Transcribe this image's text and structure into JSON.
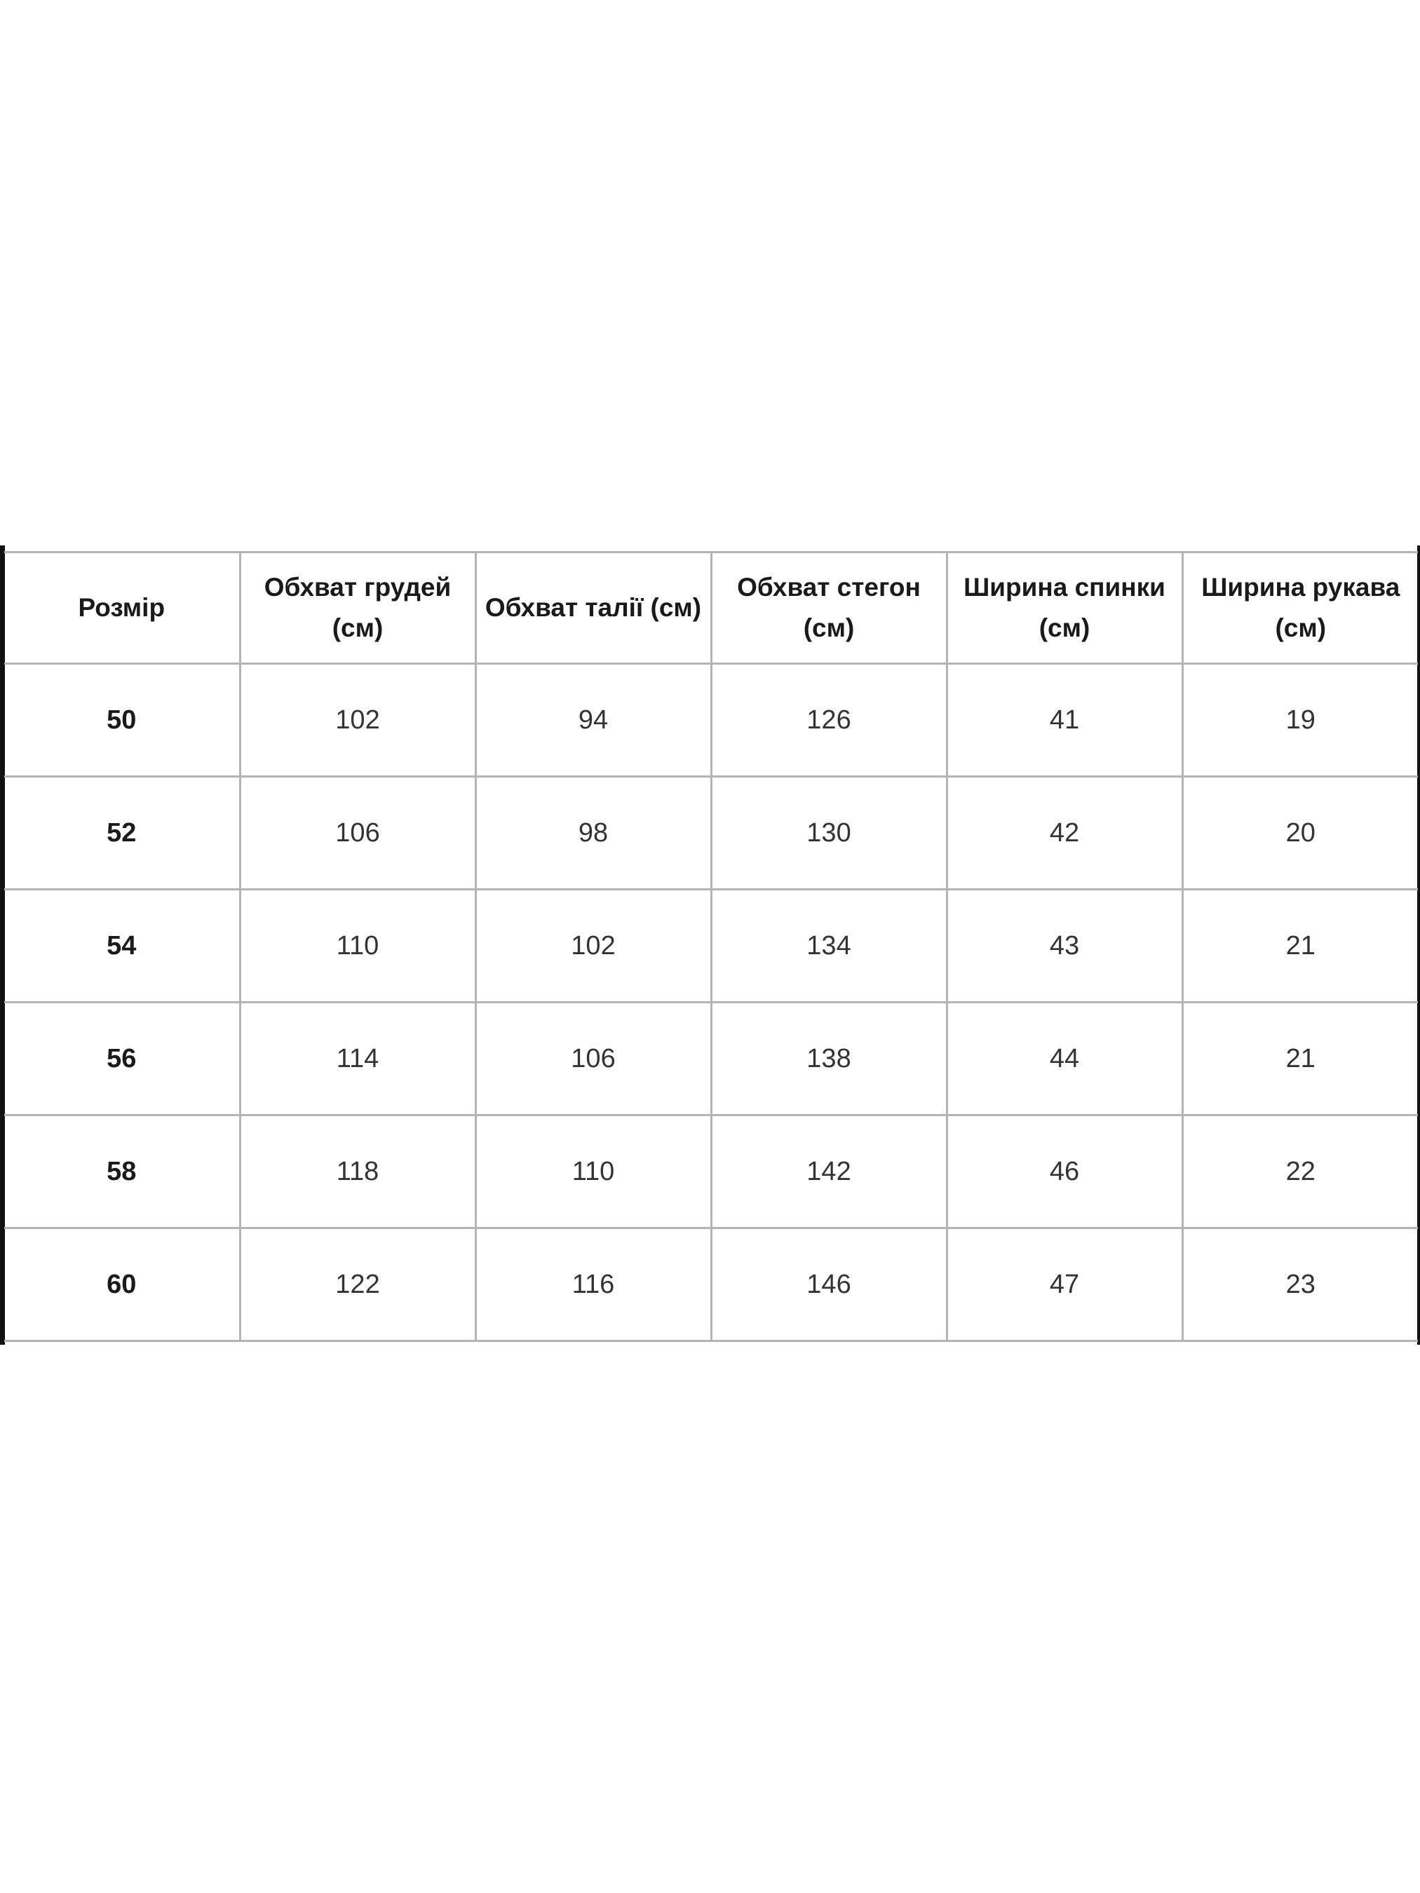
{
  "table": {
    "headers": [
      "Розмір",
      "Обхват грудей (см)",
      "Обхват талії (см)",
      "Обхват стегон (см)",
      "Ширина спинки (см)",
      "Ширина рукава (см)"
    ],
    "rows": [
      [
        "50",
        "102",
        "94",
        "126",
        "41",
        "19"
      ],
      [
        "52",
        "106",
        "98",
        "130",
        "42",
        "20"
      ],
      [
        "54",
        "110",
        "102",
        "134",
        "43",
        "21"
      ],
      [
        "56",
        "114",
        "106",
        "138",
        "44",
        "21"
      ],
      [
        "58",
        "118",
        "110",
        "142",
        "46",
        "22"
      ],
      [
        "60",
        "122",
        "116",
        "146",
        "47",
        "23"
      ]
    ]
  }
}
